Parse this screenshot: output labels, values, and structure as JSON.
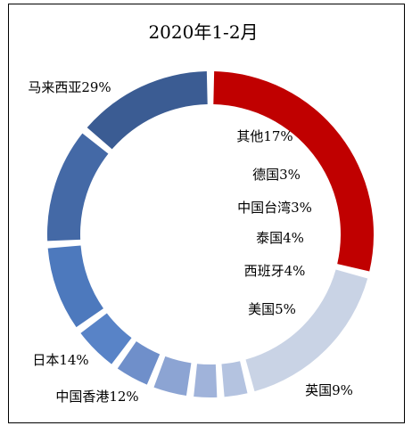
{
  "chart_data": {
    "type": "pie",
    "variant": "doughnut",
    "title": "2020年1-2月",
    "categories": [
      "马来西亚",
      "其他",
      "德国",
      "中国台湾",
      "泰国",
      "西班牙",
      "美国",
      "英国",
      "中国香港",
      "日本"
    ],
    "values": [
      29,
      17,
      3,
      3,
      4,
      4,
      5,
      9,
      12,
      14
    ],
    "label_texts": [
      "马来西亚29%",
      "其他17%",
      "德国3%",
      "中国台湾3%",
      "泰国4%",
      "西班牙4%",
      "美国5%",
      "英国9%",
      "中国香港12%",
      "日本14%"
    ],
    "colors": [
      "#c00000",
      "#c9d3e5",
      "#b4c3e0",
      "#a0b3da",
      "#8ca4d3",
      "#6f8fca",
      "#5883c7",
      "#4d79bd",
      "#4469a6",
      "#3b5c93"
    ],
    "legend": "none",
    "grid": false
  }
}
